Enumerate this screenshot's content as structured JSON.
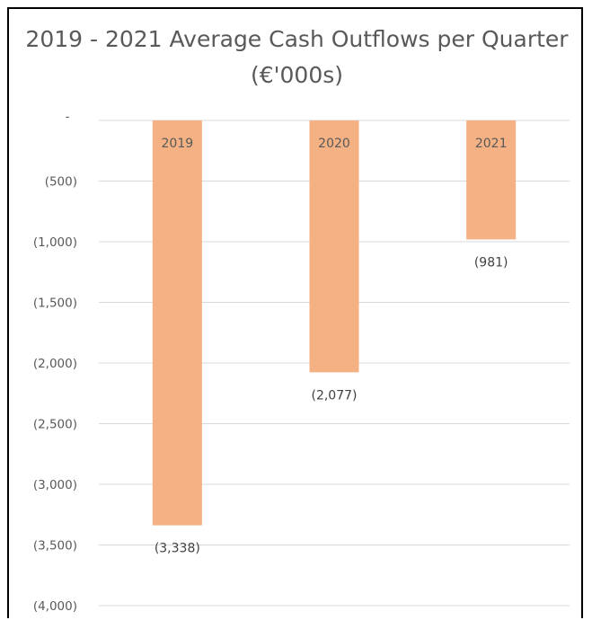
{
  "chart_data": {
    "type": "bar",
    "title": "2019 - 2021 Average Cash Outflows per Quarter (€'000s)",
    "categories": [
      "2019",
      "2020",
      "2021"
    ],
    "values": [
      -3338,
      -2077,
      -981
    ],
    "data_labels": [
      "(3,338)",
      "(2,077)",
      "(981)"
    ],
    "ylim": [
      -4000,
      0
    ],
    "ytick_values": [
      0,
      -500,
      -1000,
      -1500,
      -2000,
      -2500,
      -3000,
      -3500,
      -4000
    ],
    "ytick_labels": [
      "-",
      "(500)",
      "(1,000)",
      "(1,500)",
      "(2,000)",
      "(2,500)",
      "(3,000)",
      "(3,500)",
      "(4,000)"
    ],
    "bar_color": "#F4B183",
    "grid": true,
    "legend": "none"
  }
}
